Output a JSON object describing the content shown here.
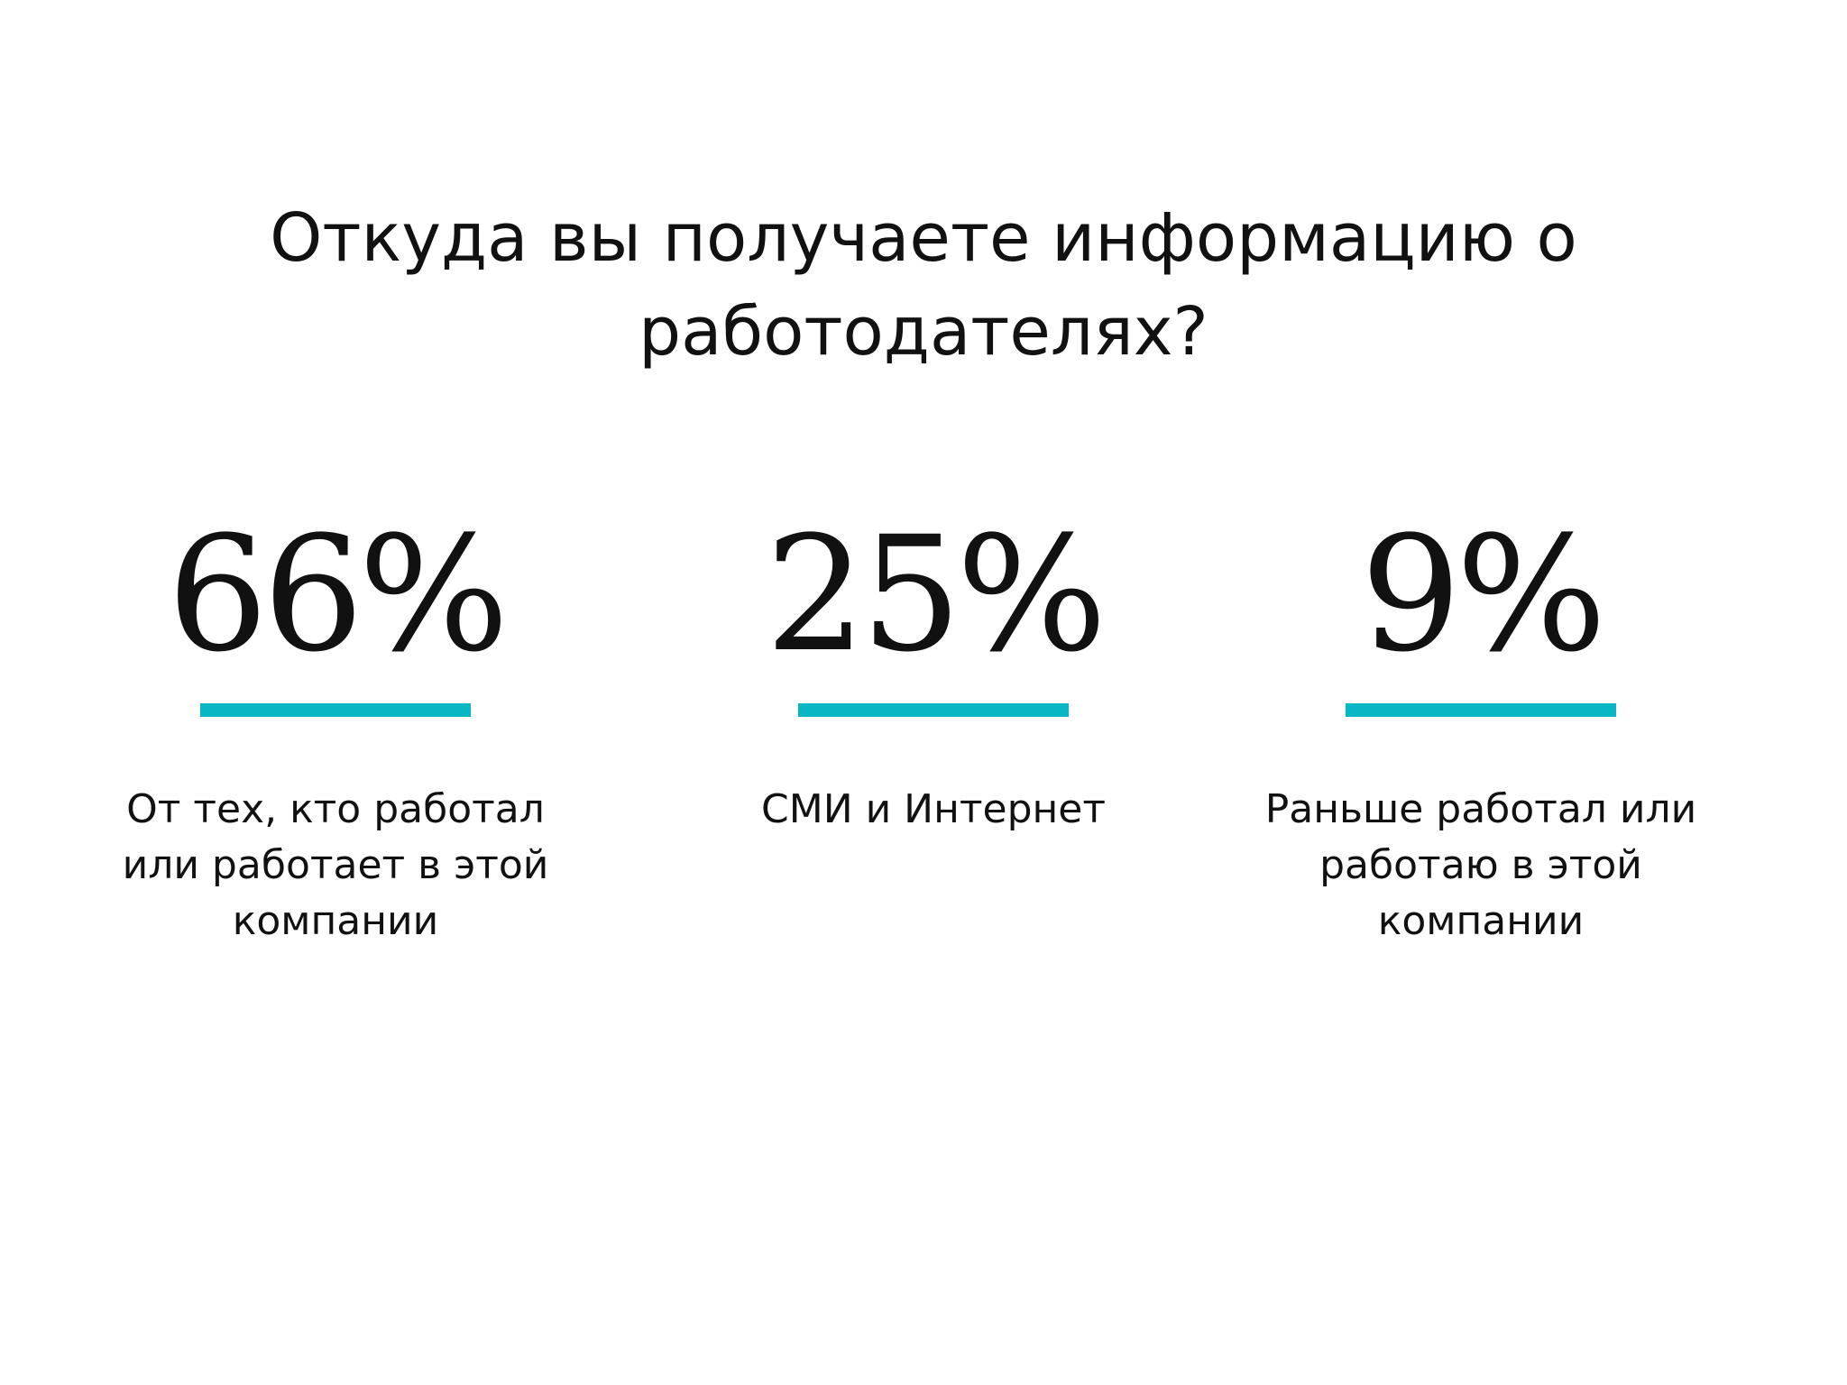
{
  "slide": {
    "title_line1": "Откуда вы получаете информацию о",
    "title_line2": "работодателях?",
    "accent_color": "#08b6c4",
    "stats": [
      {
        "value": "66%",
        "percent": 66,
        "label_line1": "От тех, кто работал",
        "label_line2": "или работает в этой",
        "label_line3": "компании"
      },
      {
        "value": "25%",
        "percent": 25,
        "label_line1": "СМИ и Интернет"
      },
      {
        "value": "9%",
        "percent": 9,
        "label_line1": "Раньше работал или",
        "label_line2": "работаю в этой компании"
      }
    ]
  }
}
